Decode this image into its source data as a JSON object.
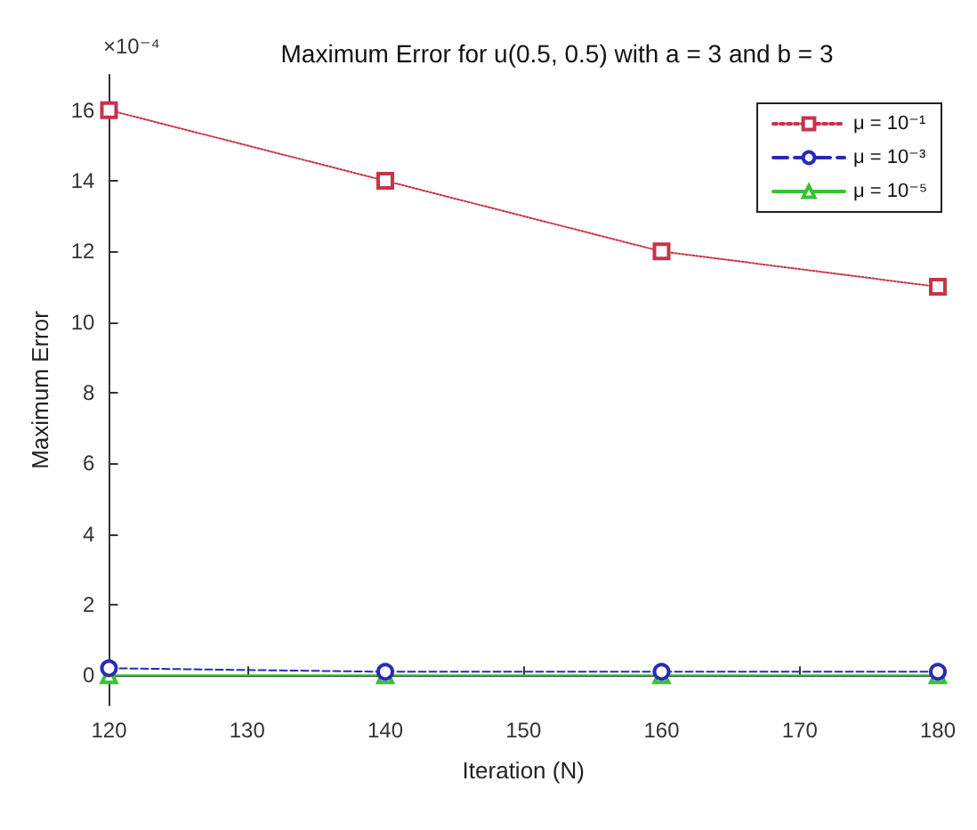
{
  "chart_data": {
    "type": "line",
    "title": "Maximum Error for u(0.5, 0.5) with a = 3 and b = 3",
    "xlabel": "Iteration (N)",
    "ylabel": "Maximum Error",
    "annotations": [
      "×10⁻⁴"
    ],
    "x": [
      120,
      140,
      160,
      180
    ],
    "series": [
      {
        "name": "μ = 10⁻¹",
        "color": "#c8324b",
        "values": [
          16,
          14,
          12,
          11
        ],
        "marker": "square",
        "line_style": "dotted"
      },
      {
        "name": "μ = 10⁻³",
        "color": "#2a2ab8",
        "values": [
          0.2,
          0.1,
          0.1,
          0.1
        ],
        "marker": "circle",
        "line_style": "dashed"
      },
      {
        "name": "μ = 10⁻⁵",
        "color": "#33c433",
        "values": [
          0,
          0,
          0,
          0
        ],
        "marker": "triangle",
        "line_style": "solid"
      }
    ],
    "xlim": [
      120,
      180
    ],
    "xticks": [
      120,
      130,
      140,
      150,
      160,
      170,
      180
    ],
    "ylim": [
      -0.85,
      17
    ],
    "yticks": [
      0,
      2,
      4,
      6,
      8,
      10,
      12,
      14,
      16
    ],
    "grid": false,
    "legend": "top right"
  }
}
